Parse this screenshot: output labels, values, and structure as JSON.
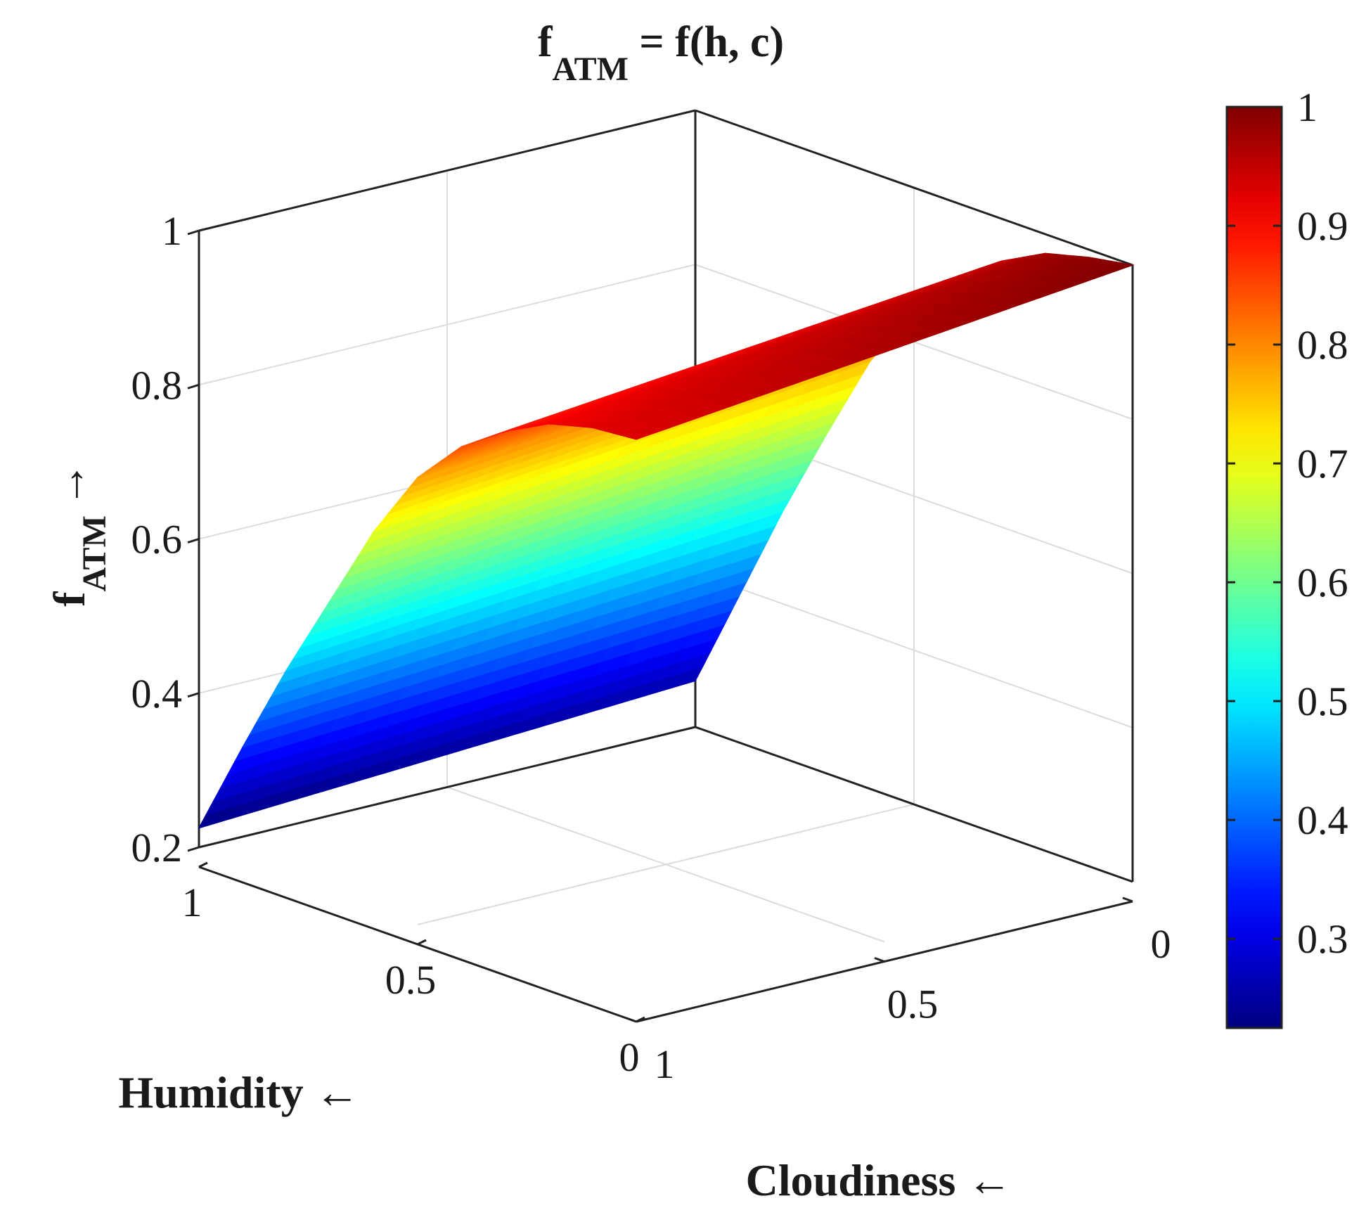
{
  "chart_data": {
    "type": "surface",
    "title": "f",
    "title_sub": "ATM",
    "title_rest": " = f(h, c)",
    "zlabel": "f",
    "zlabel_sub": "ATM",
    "zlabel_arrow": "→",
    "xlabel": "Humidity ←",
    "ylabel": "Cloudiness ←",
    "z_ticks": [
      "0.2",
      "0.4",
      "0.6",
      "0.8",
      "1"
    ],
    "z_tick_values": [
      0.2,
      0.4,
      0.6,
      0.8,
      1.0
    ],
    "humidity_ticks": [
      "0",
      "0.5",
      "1"
    ],
    "humidity_tick_values": [
      0,
      0.5,
      1
    ],
    "cloudiness_ticks": [
      "0",
      "0.5",
      "1"
    ],
    "cloudiness_tick_values": [
      0,
      0.5,
      1
    ],
    "zlim": [
      0.2,
      1.0
    ],
    "humidity_range": [
      0,
      1
    ],
    "cloudiness_range": [
      0,
      1
    ],
    "grid": true,
    "colormap": "jet",
    "colorbar": {
      "ticks": [
        "0.3",
        "0.4",
        "0.5",
        "0.6",
        "0.7",
        "0.8",
        "0.9",
        "1"
      ],
      "tick_values": [
        0.3,
        0.4,
        0.5,
        0.6,
        0.7,
        0.8,
        0.9,
        1.0
      ],
      "range": [
        0.225,
        1.0
      ]
    },
    "surface": {
      "humidity": [
        0,
        0.1,
        0.2,
        0.3,
        0.4,
        0.5,
        0.6,
        0.7,
        0.8,
        0.9,
        1.0
      ],
      "f_at_cloudiness_1": [
        0.93,
        0.925,
        0.91,
        0.88,
        0.84,
        0.78,
        0.69,
        0.58,
        0.47,
        0.35,
        0.225
      ],
      "f_at_cloudiness_0": [
        1.0,
        0.99,
        0.975,
        0.945,
        0.9,
        0.84,
        0.755,
        0.64,
        0.52,
        0.39,
        0.26
      ]
    }
  }
}
